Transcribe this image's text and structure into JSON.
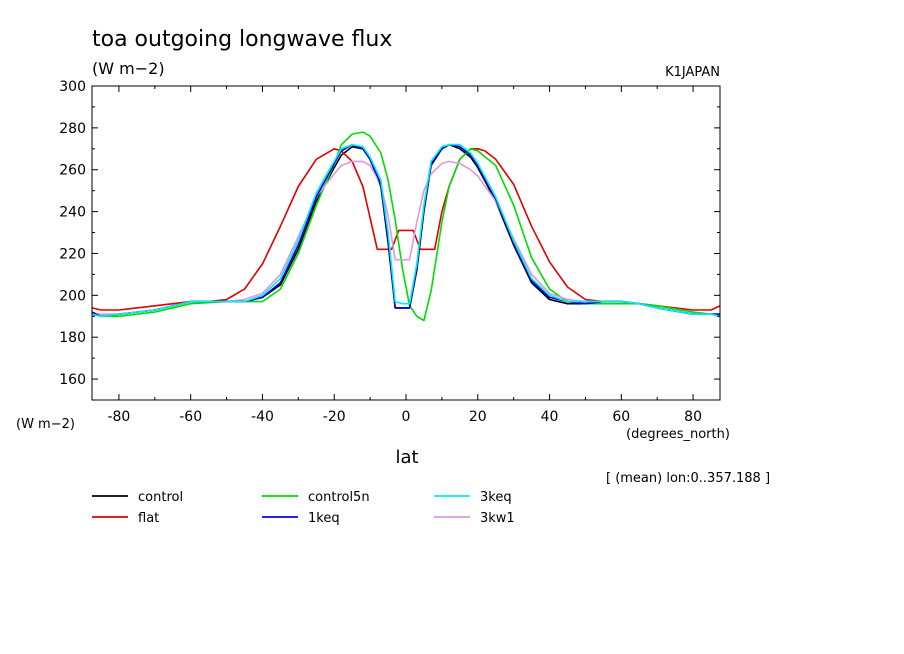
{
  "chart_data": {
    "type": "line",
    "title": "toa outgoing longwave flux",
    "units": "(W m−2)",
    "source": "K1JAPAN",
    "ylabel": "(W m−2)",
    "xlabel": "lat",
    "xunits": "(degrees_north)",
    "subset_note": "[ (mean) lon:0..357.188 ]",
    "xlim": [
      -87.5,
      87.5
    ],
    "ylim": [
      150,
      300
    ],
    "x_ticks": [
      -80,
      -60,
      -40,
      -20,
      0,
      20,
      40,
      60,
      80
    ],
    "y_ticks": [
      160,
      180,
      200,
      220,
      240,
      260,
      280,
      300
    ],
    "series": [
      {
        "name": "control",
        "color": "#000000",
        "x": [
          -87.5,
          -85,
          -80,
          -70,
          -60,
          -50,
          -45,
          -40,
          -35,
          -30,
          -25,
          -20,
          -18,
          -15,
          -12,
          -10,
          -7,
          -5,
          -3,
          -1,
          1,
          3,
          5,
          7,
          10,
          12,
          15,
          18,
          20,
          25,
          30,
          35,
          40,
          45,
          50,
          55,
          60,
          65,
          70,
          80,
          85,
          87.5
        ],
        "y": [
          192,
          190,
          191,
          193,
          197,
          197,
          197,
          199,
          205,
          222,
          245,
          261,
          267,
          271,
          270,
          265,
          252,
          225,
          194,
          194,
          194,
          212,
          240,
          262,
          270,
          272,
          270,
          266,
          261,
          245,
          224,
          206,
          198,
          196,
          196,
          197,
          197,
          196,
          194,
          191,
          191,
          191
        ]
      },
      {
        "name": "flat",
        "color": "#e00000",
        "x": [
          -87.5,
          -85,
          -80,
          -70,
          -60,
          -55,
          -50,
          -45,
          -40,
          -35,
          -30,
          -25,
          -20,
          -18,
          -15,
          -12,
          -10,
          -8,
          -6,
          -4,
          -2,
          0,
          2,
          4,
          6,
          8,
          10,
          12,
          15,
          18,
          20,
          22,
          25,
          30,
          35,
          40,
          45,
          50,
          55,
          60,
          65,
          70,
          80,
          85,
          87.5
        ],
        "y": [
          194,
          193,
          193,
          195,
          197,
          197,
          198,
          203,
          215,
          233,
          252,
          265,
          270,
          269,
          264,
          252,
          237,
          222,
          222,
          222,
          231,
          231,
          231,
          222,
          222,
          222,
          240,
          252,
          265,
          270,
          270,
          269,
          265,
          253,
          233,
          216,
          204,
          198,
          197,
          197,
          196,
          195,
          193,
          193,
          195
        ]
      },
      {
        "name": "control5n",
        "color": "#00dd00",
        "x": [
          -87.5,
          -85,
          -80,
          -70,
          -60,
          -50,
          -45,
          -40,
          -35,
          -30,
          -25,
          -20,
          -18,
          -15,
          -12,
          -10,
          -7,
          -5,
          -3,
          -1,
          1,
          3,
          5,
          7,
          10,
          12,
          15,
          18,
          20,
          25,
          30,
          35,
          40,
          45,
          50,
          55,
          60,
          65,
          70,
          80,
          85,
          87.5
        ],
        "y": [
          191,
          190,
          190,
          192,
          196,
          197,
          197,
          197,
          203,
          220,
          243,
          263,
          272,
          277,
          278,
          276,
          268,
          255,
          236,
          213,
          195,
          190,
          188,
          202,
          235,
          252,
          265,
          270,
          269,
          262,
          243,
          218,
          203,
          197,
          196,
          196,
          196,
          196,
          195,
          192,
          191,
          190
        ]
      },
      {
        "name": "1keq",
        "color": "#0000dd",
        "x": [
          -87.5,
          -85,
          -80,
          -70,
          -60,
          -50,
          -45,
          -40,
          -35,
          -30,
          -25,
          -20,
          -18,
          -15,
          -12,
          -10,
          -7,
          -5,
          -3,
          -1,
          1,
          3,
          5,
          7,
          10,
          12,
          15,
          18,
          20,
          25,
          30,
          35,
          40,
          45,
          50,
          55,
          60,
          65,
          70,
          80,
          85,
          87.5
        ],
        "y": [
          192,
          190,
          191,
          193,
          197,
          197,
          197,
          199,
          206,
          224,
          247,
          263,
          269,
          272,
          270,
          265,
          253,
          227,
          194,
          194,
          194,
          213,
          241,
          263,
          270,
          272,
          271,
          267,
          262,
          246,
          225,
          207,
          199,
          197,
          196,
          197,
          197,
          196,
          194,
          191,
          191,
          191
        ]
      },
      {
        "name": "3keq",
        "color": "#00eeee",
        "x": [
          -87.5,
          -85,
          -80,
          -70,
          -60,
          -50,
          -45,
          -40,
          -35,
          -30,
          -25,
          -20,
          -18,
          -15,
          -12,
          -10,
          -7,
          -5,
          -3,
          -1,
          1,
          3,
          5,
          7,
          10,
          12,
          15,
          18,
          20,
          25,
          30,
          35,
          40,
          45,
          50,
          55,
          60,
          65,
          70,
          80,
          85,
          87.5
        ],
        "y": [
          191,
          190,
          191,
          193,
          197,
          197,
          197,
          200,
          208,
          226,
          249,
          264,
          270,
          272,
          271,
          266,
          255,
          230,
          197,
          196,
          196,
          215,
          243,
          264,
          271,
          272,
          272,
          268,
          263,
          247,
          226,
          208,
          200,
          197,
          197,
          197,
          197,
          196,
          194,
          191,
          191,
          190
        ]
      },
      {
        "name": "3kw1",
        "color": "#dd99dd",
        "x": [
          -87.5,
          -85,
          -80,
          -70,
          -60,
          -50,
          -45,
          -40,
          -35,
          -30,
          -25,
          -20,
          -18,
          -15,
          -12,
          -10,
          -7,
          -5,
          -3,
          -1,
          1,
          3,
          5,
          7,
          10,
          12,
          15,
          18,
          20,
          25,
          30,
          35,
          40,
          45,
          50,
          55,
          60,
          65,
          70,
          80,
          85,
          87.5
        ],
        "y": [
          191,
          191,
          191,
          193,
          197,
          197,
          198,
          201,
          210,
          228,
          247,
          258,
          262,
          264,
          264,
          262,
          253,
          238,
          217,
          217,
          217,
          235,
          250,
          258,
          263,
          264,
          263,
          260,
          257,
          245,
          227,
          210,
          201,
          198,
          197,
          197,
          197,
          196,
          194,
          191,
          191,
          191
        ]
      }
    ]
  }
}
